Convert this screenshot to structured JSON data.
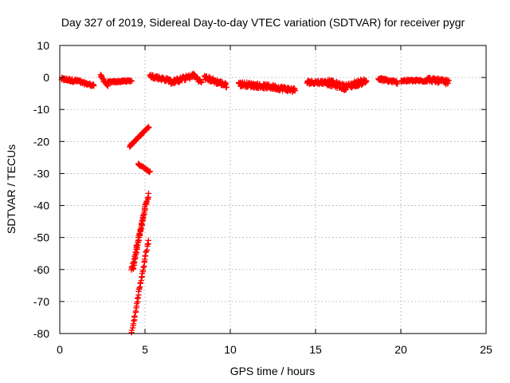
{
  "chart_data": {
    "type": "scatter",
    "title": "Day 327 of 2019, Sidereal Day-to-day VTEC variation (SDTVAR) for receiver pygr",
    "xlabel": "GPS time / hours",
    "ylabel": "SDTVAR / TECUs",
    "xlim": [
      0,
      25
    ],
    "ylim": [
      -80,
      10
    ],
    "xticks": [
      "0",
      "5",
      "10",
      "15",
      "20",
      "25"
    ],
    "yticks": [
      "10",
      "0",
      "-10",
      "-20",
      "-30",
      "-40",
      "-50",
      "-60",
      "-70",
      "-80"
    ],
    "grid": true,
    "marker": "plus",
    "color": "#ff0000",
    "series": [
      {
        "segments": [
          {
            "x0": 0.1,
            "x1": 1.2,
            "y0": -0.5,
            "y1": -1.2,
            "jitter": 1.0
          },
          {
            "x0": 1.2,
            "x1": 2.0,
            "y0": -1.5,
            "y1": -2.5,
            "jitter": 0.8
          },
          {
            "x0": 2.4,
            "x1": 2.8,
            "y0": 0.5,
            "y1": -2.5,
            "jitter": 0.8
          },
          {
            "x0": 2.8,
            "x1": 4.2,
            "y0": -1.5,
            "y1": -1.0,
            "jitter": 0.6
          },
          {
            "x0": 4.1,
            "x1": 5.2,
            "y0": -21.5,
            "y1": -15.5,
            "jitter": 0.4
          },
          {
            "x0": 4.6,
            "x1": 5.3,
            "y0": -27.0,
            "y1": -29.5,
            "jitter": 0.4
          },
          {
            "x0": 4.2,
            "x1": 5.2,
            "y0": -60.5,
            "y1": -36.5,
            "jitter": 1.0
          },
          {
            "x0": 4.3,
            "x1": 5.0,
            "y0": -60.0,
            "y1": -40.0,
            "jitter": 0.8
          },
          {
            "x0": 4.2,
            "x1": 5.2,
            "y0": -80.0,
            "y1": -51.0,
            "jitter": 0.8
          },
          {
            "x0": 5.3,
            "x1": 6.5,
            "y0": 0.5,
            "y1": -1.0,
            "jitter": 1.2
          },
          {
            "x0": 6.5,
            "x1": 7.8,
            "y0": -1.5,
            "y1": 0.5,
            "jitter": 1.5
          },
          {
            "x0": 7.8,
            "x1": 8.3,
            "y0": 1.0,
            "y1": -1.5,
            "jitter": 1.2
          },
          {
            "x0": 8.5,
            "x1": 9.8,
            "y0": 0.0,
            "y1": -2.5,
            "jitter": 1.5
          },
          {
            "x0": 10.5,
            "x1": 12.5,
            "y0": -2.0,
            "y1": -3.0,
            "jitter": 1.5
          },
          {
            "x0": 12.5,
            "x1": 13.8,
            "y0": -3.0,
            "y1": -4.0,
            "jitter": 1.5
          },
          {
            "x0": 14.5,
            "x1": 15.7,
            "y0": -1.5,
            "y1": -1.5,
            "jitter": 1.2
          },
          {
            "x0": 15.7,
            "x1": 16.7,
            "y0": -1.5,
            "y1": -3.0,
            "jitter": 2.0
          },
          {
            "x0": 16.7,
            "x1": 18.0,
            "y0": -3.0,
            "y1": -1.0,
            "jitter": 1.8
          },
          {
            "x0": 18.7,
            "x1": 19.8,
            "y0": -0.5,
            "y1": -1.5,
            "jitter": 1.0
          },
          {
            "x0": 20.0,
            "x1": 21.5,
            "y0": -1.0,
            "y1": -1.0,
            "jitter": 0.8
          },
          {
            "x0": 21.5,
            "x1": 22.8,
            "y0": -0.5,
            "y1": -1.5,
            "jitter": 1.5
          }
        ]
      }
    ]
  }
}
